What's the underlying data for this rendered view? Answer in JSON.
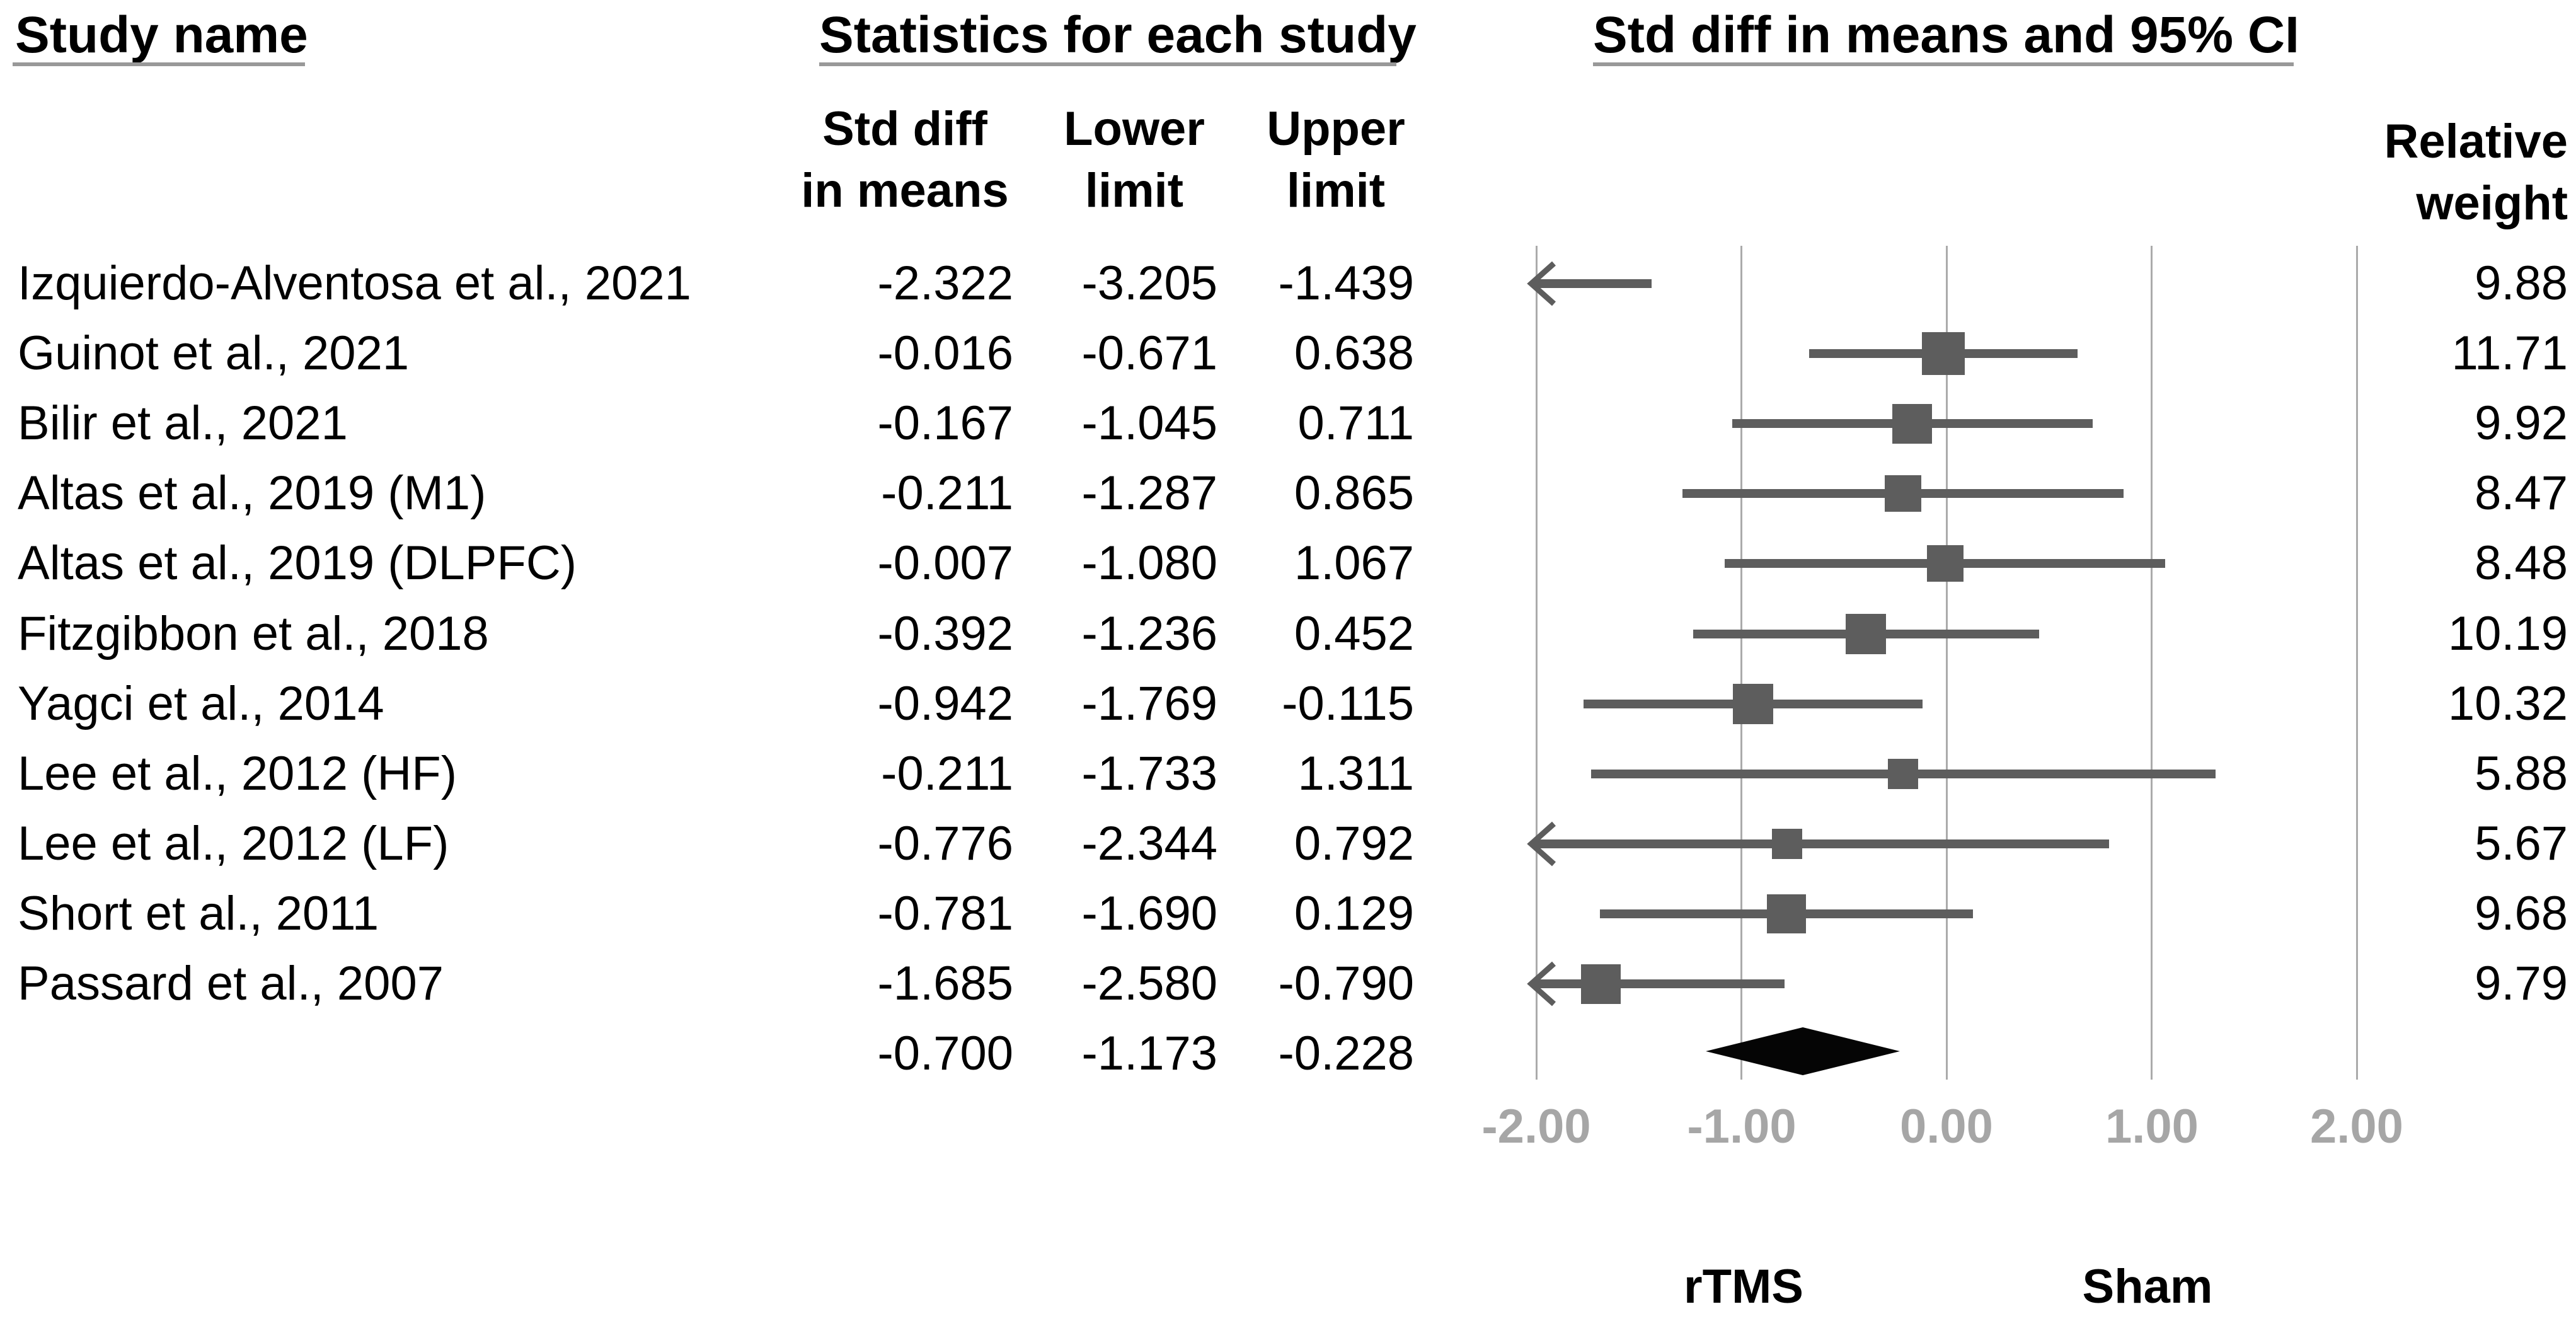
{
  "header": {
    "study_col": "Study name",
    "stats_col": "Statistics for each study",
    "plot_col": "Std diff in means and 95% CI",
    "stat_subcols": [
      {
        "l1": "Std diff",
        "l2": "in means"
      },
      {
        "l1": "Lower",
        "l2": "limit"
      },
      {
        "l1": "Upper",
        "l2": "limit"
      }
    ],
    "weight_col": {
      "l1": "Relative",
      "l2": "weight"
    }
  },
  "footer": {
    "left_group": "rTMS",
    "right_group": "Sham"
  },
  "chart_data": {
    "type": "forest",
    "title": "Std diff in means and 95% CI",
    "effect_measure": "Std diff in means",
    "xlim": [
      -2,
      2
    ],
    "x_ticks": [
      -2,
      -1,
      0,
      1,
      2
    ],
    "x_tick_labels": [
      "-2.00",
      "-1.00",
      "0.00",
      "1.00",
      "2.00"
    ],
    "grid": true,
    "studies": [
      {
        "name": "Izquierdo-Alventosa et al., 2021",
        "std_diff": -2.322,
        "lower": -3.205,
        "upper": -1.439,
        "weight": 9.88
      },
      {
        "name": "Guinot et al., 2021",
        "std_diff": -0.016,
        "lower": -0.671,
        "upper": 0.638,
        "weight": 11.71
      },
      {
        "name": "Bilir et al., 2021",
        "std_diff": -0.167,
        "lower": -1.045,
        "upper": 0.711,
        "weight": 9.92
      },
      {
        "name": "Altas et al., 2019 (M1)",
        "std_diff": -0.211,
        "lower": -1.287,
        "upper": 0.865,
        "weight": 8.47
      },
      {
        "name": "Altas et al., 2019 (DLPFC)",
        "std_diff": -0.007,
        "lower": -1.08,
        "upper": 1.067,
        "weight": 8.48
      },
      {
        "name": "Fitzgibbon et al., 2018",
        "std_diff": -0.392,
        "lower": -1.236,
        "upper": 0.452,
        "weight": 10.19
      },
      {
        "name": "Yagci et al., 2014",
        "std_diff": -0.942,
        "lower": -1.769,
        "upper": -0.115,
        "weight": 10.32
      },
      {
        "name": "Lee et al., 2012 (HF)",
        "std_diff": -0.211,
        "lower": -1.733,
        "upper": 1.311,
        "weight": 5.88
      },
      {
        "name": "Lee et al., 2012 (LF)",
        "std_diff": -0.776,
        "lower": -2.344,
        "upper": 0.792,
        "weight": 5.67
      },
      {
        "name": "Short et al., 2011",
        "std_diff": -0.781,
        "lower": -1.69,
        "upper": 0.129,
        "weight": 9.68
      },
      {
        "name": "Passard et al., 2007",
        "std_diff": -1.685,
        "lower": -2.58,
        "upper": -0.79,
        "weight": 9.79
      }
    ],
    "overall": {
      "std_diff": -0.7,
      "lower": -1.173,
      "upper": -0.228
    }
  },
  "colors": {
    "marker": "#5d5d5d",
    "diamond": "#050505",
    "gridline": "#ababab",
    "axis_label": "#a6a6a6",
    "underline": "#999999",
    "text": "#000000"
  }
}
